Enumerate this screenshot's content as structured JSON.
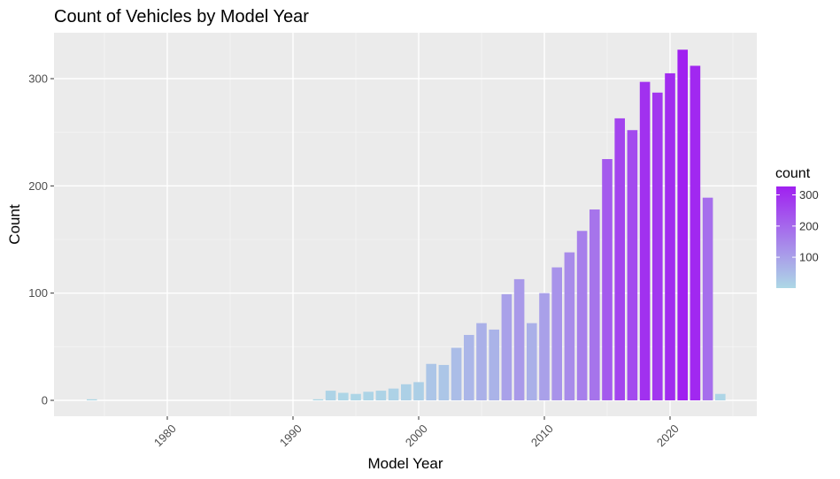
{
  "chart_data": {
    "type": "bar",
    "title": "Count of Vehicles by Model Year",
    "xlabel": "Model Year",
    "ylabel": "Count",
    "xlim": [
      1971.9,
      1987.0
    ],
    "ylim": [
      -16.3,
      342.9
    ],
    "x_ticks": [
      1980,
      1990,
      2000,
      2010,
      2020
    ],
    "y_ticks": [
      0,
      100,
      200,
      300
    ],
    "x_tick_rotation": -45,
    "grid": true,
    "legend": {
      "title": "count",
      "placement": "right",
      "type": "colorbar",
      "ticks": [
        100,
        200,
        300
      ],
      "range": [
        1,
        327
      ],
      "low_color": "#add8e6",
      "high_color": "#a020f0"
    },
    "bars": [
      {
        "x": 1974,
        "y": 1
      },
      {
        "x": 1992,
        "y": 1
      },
      {
        "x": 1993,
        "y": 9
      },
      {
        "x": 1994,
        "y": 7
      },
      {
        "x": 1995,
        "y": 6
      },
      {
        "x": 1996,
        "y": 8
      },
      {
        "x": 1997,
        "y": 9
      },
      {
        "x": 1998,
        "y": 11
      },
      {
        "x": 1999,
        "y": 15
      },
      {
        "x": 2000,
        "y": 17
      },
      {
        "x": 2001,
        "y": 34
      },
      {
        "x": 2002,
        "y": 33
      },
      {
        "x": 2003,
        "y": 49
      },
      {
        "x": 2004,
        "y": 61
      },
      {
        "x": 2005,
        "y": 72
      },
      {
        "x": 2006,
        "y": 66
      },
      {
        "x": 2007,
        "y": 99
      },
      {
        "x": 2008,
        "y": 113
      },
      {
        "x": 2009,
        "y": 72
      },
      {
        "x": 2010,
        "y": 100
      },
      {
        "x": 2011,
        "y": 124
      },
      {
        "x": 2012,
        "y": 138
      },
      {
        "x": 2013,
        "y": 158
      },
      {
        "x": 2014,
        "y": 178
      },
      {
        "x": 2015,
        "y": 225
      },
      {
        "x": 2016,
        "y": 263
      },
      {
        "x": 2017,
        "y": 252
      },
      {
        "x": 2018,
        "y": 297
      },
      {
        "x": 2019,
        "y": 287
      },
      {
        "x": 2020,
        "y": 305
      },
      {
        "x": 2021,
        "y": 327
      },
      {
        "x": 2022,
        "y": 312
      },
      {
        "x": 2023,
        "y": 189
      },
      {
        "x": 2024,
        "y": 6
      }
    ]
  }
}
